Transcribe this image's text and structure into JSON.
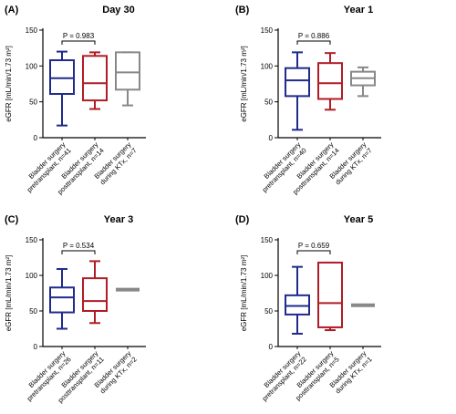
{
  "figure": {
    "colors": {
      "blue": "#1f2a8c",
      "red": "#b01c26",
      "gray": "#888888",
      "axis": "#000000"
    }
  },
  "chart_data": [
    {
      "type": "box",
      "panel_letter": "(A)",
      "title": "Day 30",
      "ylabel": "eGFR [mL/min/1.73 m²]",
      "ylim": [
        0,
        150
      ],
      "yticks": [
        0,
        50,
        100,
        150
      ],
      "categories": [
        "Bladder surgery pretransplant, n=41",
        "Bladder surgery posttransplant, n=14",
        "Bladder surgery during KTx, n=7"
      ],
      "boxes": [
        {
          "min": 17,
          "q1": 61,
          "median": 83,
          "q3": 108,
          "max": 120
        },
        {
          "min": 40,
          "q1": 52,
          "median": 76,
          "q3": 114,
          "max": 119
        },
        {
          "min": 45,
          "q1": 67,
          "median": 91,
          "q3": 119,
          "max": 119
        }
      ],
      "comparison": {
        "between": [
          0,
          1
        ],
        "label": "P = 0.983"
      }
    },
    {
      "type": "box",
      "panel_letter": "(B)",
      "title": "Year 1",
      "ylabel": "eGFR [mL/min/1.73 m²]",
      "ylim": [
        0,
        150
      ],
      "yticks": [
        0,
        50,
        100,
        150
      ],
      "categories": [
        "Bladder surgery pretransplant, n=40",
        "Bladder surgery posttransplant, n=14",
        "Bladder surgery during KTx, n=7"
      ],
      "boxes": [
        {
          "min": 11,
          "q1": 58,
          "median": 80,
          "q3": 97,
          "max": 119
        },
        {
          "min": 39,
          "q1": 54,
          "median": 76,
          "q3": 104,
          "max": 118
        },
        {
          "min": 58,
          "q1": 73,
          "median": 83,
          "q3": 92,
          "max": 98
        }
      ],
      "comparison": {
        "between": [
          0,
          1
        ],
        "label": "P = 0.886"
      }
    },
    {
      "type": "box",
      "panel_letter": "(C)",
      "title": "Year 3",
      "ylabel": "eGFR [mL/min/1.73 m²]",
      "ylim": [
        0,
        150
      ],
      "yticks": [
        0,
        50,
        100,
        150
      ],
      "categories": [
        "Bladder surgery pretransplant, n=26",
        "Bladder surgery posttransplant, n=11",
        "Bladder surgery during KTx, n=2"
      ],
      "boxes": [
        {
          "min": 25,
          "q1": 48,
          "median": 69,
          "q3": 83,
          "max": 109
        },
        {
          "min": 33,
          "q1": 50,
          "median": 64,
          "q3": 96,
          "max": 120
        },
        {
          "min": 78,
          "q1": 78,
          "median": 80,
          "q3": 81,
          "max": 81
        }
      ],
      "comparison": {
        "between": [
          0,
          1
        ],
        "label": "P = 0.534"
      }
    },
    {
      "type": "box",
      "panel_letter": "(D)",
      "title": "Year 5",
      "ylabel": "eGFR [mL/min/1.73 m²]",
      "ylim": [
        0,
        150
      ],
      "yticks": [
        0,
        50,
        100,
        150
      ],
      "categories": [
        "Bladder surgery pretransplant, n=22",
        "Bladder surgery posttransplant, n=5",
        "Bladder surgery during KTx, n=1"
      ],
      "boxes": [
        {
          "min": 18,
          "q1": 45,
          "median": 57,
          "q3": 72,
          "max": 112
        },
        {
          "min": 23,
          "q1": 27,
          "median": 61,
          "q3": 118,
          "max": 118
        },
        {
          "min": 56,
          "q1": 56,
          "median": 58,
          "q3": 59,
          "max": 59
        }
      ],
      "comparison": {
        "between": [
          0,
          1
        ],
        "label": "P = 0.659"
      }
    }
  ]
}
